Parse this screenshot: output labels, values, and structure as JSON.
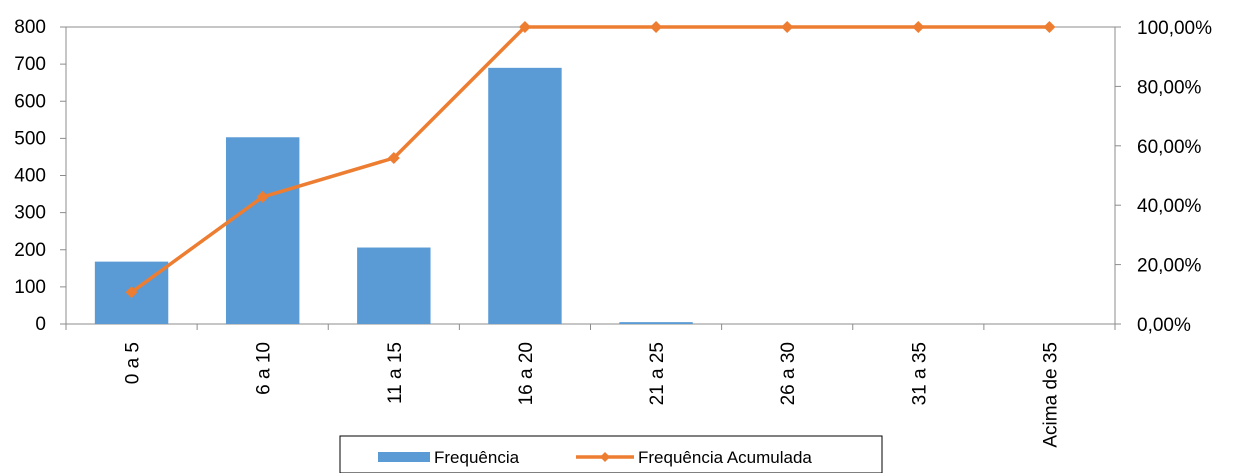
{
  "chart_data": {
    "type": "bar",
    "title": "",
    "categories": [
      "0 a 5",
      "6 a 10",
      "11 a 15",
      "16 a 20",
      "21 a 25",
      "26 a 30",
      "31 a 35",
      "Acima de 35"
    ],
    "series": [
      {
        "name": "Frequência",
        "type": "bar",
        "axis": "left",
        "color": "#5b9bd5",
        "values": [
          168,
          503,
          206,
          690,
          5,
          0,
          0,
          0
        ]
      },
      {
        "name": "Frequência Acumulada",
        "type": "line",
        "axis": "right",
        "color": "#ed7d31",
        "values": [
          0.107,
          0.428,
          0.559,
          1.0,
          1.0,
          1.0,
          1.0,
          1.0
        ]
      }
    ],
    "left_axis": {
      "min": 0,
      "max": 800,
      "ticks": [
        "0",
        "100",
        "200",
        "300",
        "400",
        "500",
        "600",
        "700",
        "800"
      ]
    },
    "right_axis": {
      "min": 0,
      "max": 1,
      "ticks": [
        "0,00%",
        "20,00%",
        "40,00%",
        "60,00%",
        "80,00%",
        "100,00%"
      ]
    },
    "legend_position": "bottom",
    "legend": [
      "Frequência",
      "Frequência Acumulada"
    ],
    "grid": false
  }
}
